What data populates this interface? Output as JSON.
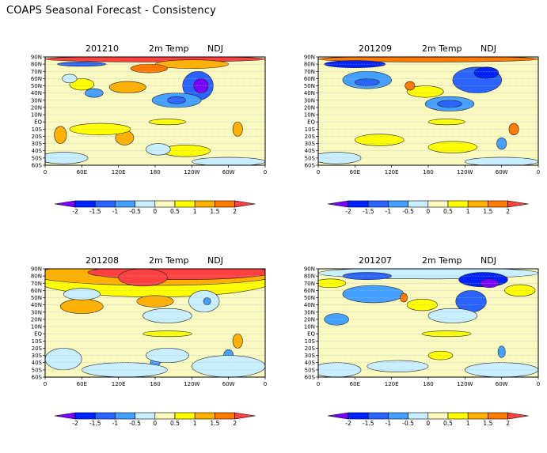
{
  "page": {
    "title": "COAPS Seasonal Forecast - Consistency"
  },
  "legend": {
    "colors": [
      "#7a00ff",
      "#0022ff",
      "#2a63ff",
      "#43a0ff",
      "#c8eeff",
      "#fafac0",
      "#ffff00",
      "#ffb000",
      "#ff7a00",
      "#ff4040"
    ],
    "tick_labels": [
      "-2",
      "-1.5",
      "-1",
      "-0.5",
      "0",
      "0.5",
      "1",
      "1.5",
      "2"
    ],
    "bounds": [
      -2,
      -1.5,
      -1,
      -0.5,
      0,
      0.5,
      1,
      1.5,
      2
    ]
  },
  "axes": {
    "x_ticks": [
      "0",
      "60E",
      "120E",
      "180",
      "120W",
      "60W",
      "0"
    ],
    "y_ticks": [
      "90N",
      "80N",
      "70N",
      "60N",
      "50N",
      "40N",
      "30N",
      "20N",
      "10N",
      "EQ",
      "10S",
      "20S",
      "30S",
      "40S",
      "50S",
      "60S"
    ],
    "lon_range": [
      0,
      360
    ],
    "lat_range": [
      -60,
      90
    ]
  },
  "chart_data": [
    {
      "type": "heatmap",
      "init": "201210",
      "variable": "2m Temp",
      "season": "NDJ",
      "background_value": 0.25,
      "anomalies": [
        {
          "lon": 180,
          "lat": 87,
          "rlon": 180,
          "rlat": 4,
          "v": 2.2
        },
        {
          "lon": 60,
          "lat": 80,
          "rlon": 40,
          "rlat": 3,
          "v": -1.2
        },
        {
          "lon": 240,
          "lat": 80,
          "rlon": 60,
          "rlat": 6,
          "v": 1.2
        },
        {
          "lon": 170,
          "lat": 74,
          "rlon": 30,
          "rlat": 6,
          "v": 1.7
        },
        {
          "lon": 250,
          "lat": 50,
          "rlon": 25,
          "rlat": 20,
          "v": -1.2
        },
        {
          "lon": 255,
          "lat": 50,
          "rlon": 12,
          "rlat": 10,
          "v": -2.1
        },
        {
          "lon": 215,
          "lat": 30,
          "rlon": 40,
          "rlat": 10,
          "v": -0.8
        },
        {
          "lon": 215,
          "lat": 30,
          "rlon": 15,
          "rlat": 5,
          "v": -1.3
        },
        {
          "lon": 135,
          "lat": 48,
          "rlon": 30,
          "rlat": 8,
          "v": 1.2
        },
        {
          "lon": 80,
          "lat": 40,
          "rlon": 15,
          "rlat": 6,
          "v": -0.7
        },
        {
          "lon": 60,
          "lat": 52,
          "rlon": 20,
          "rlat": 8,
          "v": 0.7
        },
        {
          "lon": 40,
          "lat": 60,
          "rlon": 12,
          "rlat": 6,
          "v": -0.3
        },
        {
          "lon": 25,
          "lat": -18,
          "rlon": 10,
          "rlat": 12,
          "v": 1.2
        },
        {
          "lon": 130,
          "lat": -22,
          "rlon": 15,
          "rlat": 10,
          "v": 1.1
        },
        {
          "lon": 315,
          "lat": -10,
          "rlon": 8,
          "rlat": 10,
          "v": 1.4
        },
        {
          "lon": 90,
          "lat": -10,
          "rlon": 50,
          "rlat": 8,
          "v": 0.7
        },
        {
          "lon": 230,
          "lat": -40,
          "rlon": 40,
          "rlat": 8,
          "v": 0.7
        },
        {
          "lon": 30,
          "lat": -50,
          "rlon": 40,
          "rlat": 8,
          "v": -0.3
        },
        {
          "lon": 185,
          "lat": -38,
          "rlon": 20,
          "rlat": 8,
          "v": -0.3
        },
        {
          "lon": 300,
          "lat": -55,
          "rlon": 60,
          "rlat": 6,
          "v": -0.3
        },
        {
          "lon": 200,
          "lat": 0,
          "rlon": 30,
          "rlat": 4,
          "v": 0.7
        }
      ]
    },
    {
      "type": "heatmap",
      "init": "201209",
      "variable": "2m Temp",
      "season": "NDJ",
      "background_value": 0.25,
      "anomalies": [
        {
          "lon": 180,
          "lat": 87,
          "rlon": 180,
          "rlat": 4,
          "v": 1.7
        },
        {
          "lon": 60,
          "lat": 80,
          "rlon": 50,
          "rlat": 5,
          "v": -1.6
        },
        {
          "lon": 80,
          "lat": 58,
          "rlon": 40,
          "rlat": 12,
          "v": -0.7
        },
        {
          "lon": 80,
          "lat": 55,
          "rlon": 20,
          "rlat": 5,
          "v": -1.2
        },
        {
          "lon": 260,
          "lat": 58,
          "rlon": 40,
          "rlat": 18,
          "v": -1.2
        },
        {
          "lon": 275,
          "lat": 68,
          "rlon": 20,
          "rlat": 8,
          "v": -1.8
        },
        {
          "lon": 215,
          "lat": 25,
          "rlon": 40,
          "rlat": 10,
          "v": -0.8
        },
        {
          "lon": 215,
          "lat": 25,
          "rlon": 20,
          "rlat": 5,
          "v": -1.2
        },
        {
          "lon": 175,
          "lat": 42,
          "rlon": 30,
          "rlat": 8,
          "v": 0.7
        },
        {
          "lon": 150,
          "lat": 50,
          "rlon": 8,
          "rlat": 6,
          "v": 1.6
        },
        {
          "lon": 320,
          "lat": -10,
          "rlon": 8,
          "rlat": 8,
          "v": 1.7
        },
        {
          "lon": 100,
          "lat": -25,
          "rlon": 40,
          "rlat": 8,
          "v": 0.7
        },
        {
          "lon": 220,
          "lat": -35,
          "rlon": 40,
          "rlat": 8,
          "v": 0.7
        },
        {
          "lon": 210,
          "lat": 0,
          "rlon": 30,
          "rlat": 4,
          "v": 0.7
        },
        {
          "lon": 300,
          "lat": -30,
          "rlon": 8,
          "rlat": 8,
          "v": -0.8
        },
        {
          "lon": 30,
          "lat": -50,
          "rlon": 40,
          "rlat": 8,
          "v": -0.3
        },
        {
          "lon": 300,
          "lat": -55,
          "rlon": 60,
          "rlat": 6,
          "v": -0.3
        }
      ]
    },
    {
      "type": "heatmap",
      "init": "201208",
      "variable": "2m Temp",
      "season": "NDJ",
      "background_value": 0.25,
      "anomalies": [
        {
          "lon": 180,
          "lat": 76,
          "rlon": 200,
          "rlat": 25,
          "v": 0.7
        },
        {
          "lon": 180,
          "lat": 82,
          "rlon": 200,
          "rlat": 15,
          "v": 1.2
        },
        {
          "lon": 220,
          "lat": 85,
          "rlon": 150,
          "rlat": 10,
          "v": 2.2
        },
        {
          "lon": 160,
          "lat": 78,
          "rlon": 40,
          "rlat": 12,
          "v": 2.2
        },
        {
          "lon": 180,
          "lat": 45,
          "rlon": 30,
          "rlat": 8,
          "v": 1.2
        },
        {
          "lon": 60,
          "lat": 38,
          "rlon": 35,
          "rlat": 10,
          "v": 1.2
        },
        {
          "lon": 60,
          "lat": 55,
          "rlon": 30,
          "rlat": 8,
          "v": -0.3
        },
        {
          "lon": 260,
          "lat": 45,
          "rlon": 25,
          "rlat": 15,
          "v": -0.3
        },
        {
          "lon": 265,
          "lat": 45,
          "rlon": 6,
          "rlat": 5,
          "v": -0.8
        },
        {
          "lon": 200,
          "lat": 25,
          "rlon": 40,
          "rlat": 10,
          "v": -0.3
        },
        {
          "lon": 200,
          "lat": 0,
          "rlon": 40,
          "rlat": 4,
          "v": 0.7
        },
        {
          "lon": 315,
          "lat": -10,
          "rlon": 8,
          "rlat": 10,
          "v": 1.4
        },
        {
          "lon": 300,
          "lat": -30,
          "rlon": 8,
          "rlat": 8,
          "v": -0.8
        },
        {
          "lon": 180,
          "lat": -40,
          "rlon": 8,
          "rlat": 5,
          "v": -0.8
        },
        {
          "lon": 130,
          "lat": -50,
          "rlon": 70,
          "rlat": 10,
          "v": -0.3
        },
        {
          "lon": 300,
          "lat": -45,
          "rlon": 60,
          "rlat": 15,
          "v": -0.3
        },
        {
          "lon": 30,
          "lat": -35,
          "rlon": 30,
          "rlat": 15,
          "v": -0.3
        },
        {
          "lon": 200,
          "lat": -30,
          "rlon": 35,
          "rlat": 10,
          "v": -0.3
        }
      ]
    },
    {
      "type": "heatmap",
      "init": "201207",
      "variable": "2m Temp",
      "season": "NDJ",
      "background_value": 0.25,
      "anomalies": [
        {
          "lon": 180,
          "lat": 84,
          "rlon": 180,
          "rlat": 8,
          "v": -0.3
        },
        {
          "lon": 80,
          "lat": 80,
          "rlon": 40,
          "rlat": 5,
          "v": -1.3
        },
        {
          "lon": 270,
          "lat": 75,
          "rlon": 40,
          "rlat": 10,
          "v": -1.6
        },
        {
          "lon": 280,
          "lat": 70,
          "rlon": 15,
          "rlat": 6,
          "v": -2.2
        },
        {
          "lon": 20,
          "lat": 70,
          "rlon": 25,
          "rlat": 6,
          "v": 0.7
        },
        {
          "lon": 90,
          "lat": 55,
          "rlon": 50,
          "rlat": 12,
          "v": -0.7
        },
        {
          "lon": 250,
          "lat": 45,
          "rlon": 25,
          "rlat": 15,
          "v": -1.2
        },
        {
          "lon": 220,
          "lat": 25,
          "rlon": 40,
          "rlat": 10,
          "v": -0.3
        },
        {
          "lon": 170,
          "lat": 40,
          "rlon": 25,
          "rlat": 8,
          "v": 0.7
        },
        {
          "lon": 140,
          "lat": 50,
          "rlon": 6,
          "rlat": 6,
          "v": 1.7
        },
        {
          "lon": 210,
          "lat": 0,
          "rlon": 40,
          "rlat": 4,
          "v": 0.7
        },
        {
          "lon": 30,
          "lat": 20,
          "rlon": 20,
          "rlat": 8,
          "v": -0.7
        },
        {
          "lon": 330,
          "lat": 60,
          "rlon": 25,
          "rlat": 8,
          "v": 0.7
        },
        {
          "lon": 30,
          "lat": -50,
          "rlon": 40,
          "rlat": 10,
          "v": -0.3
        },
        {
          "lon": 300,
          "lat": -50,
          "rlon": 60,
          "rlat": 10,
          "v": -0.3
        },
        {
          "lon": 200,
          "lat": -30,
          "rlon": 20,
          "rlat": 6,
          "v": 0.7
        },
        {
          "lon": 300,
          "lat": -25,
          "rlon": 6,
          "rlat": 8,
          "v": -0.8
        },
        {
          "lon": 130,
          "lat": -45,
          "rlon": 50,
          "rlat": 8,
          "v": -0.3
        }
      ]
    }
  ]
}
